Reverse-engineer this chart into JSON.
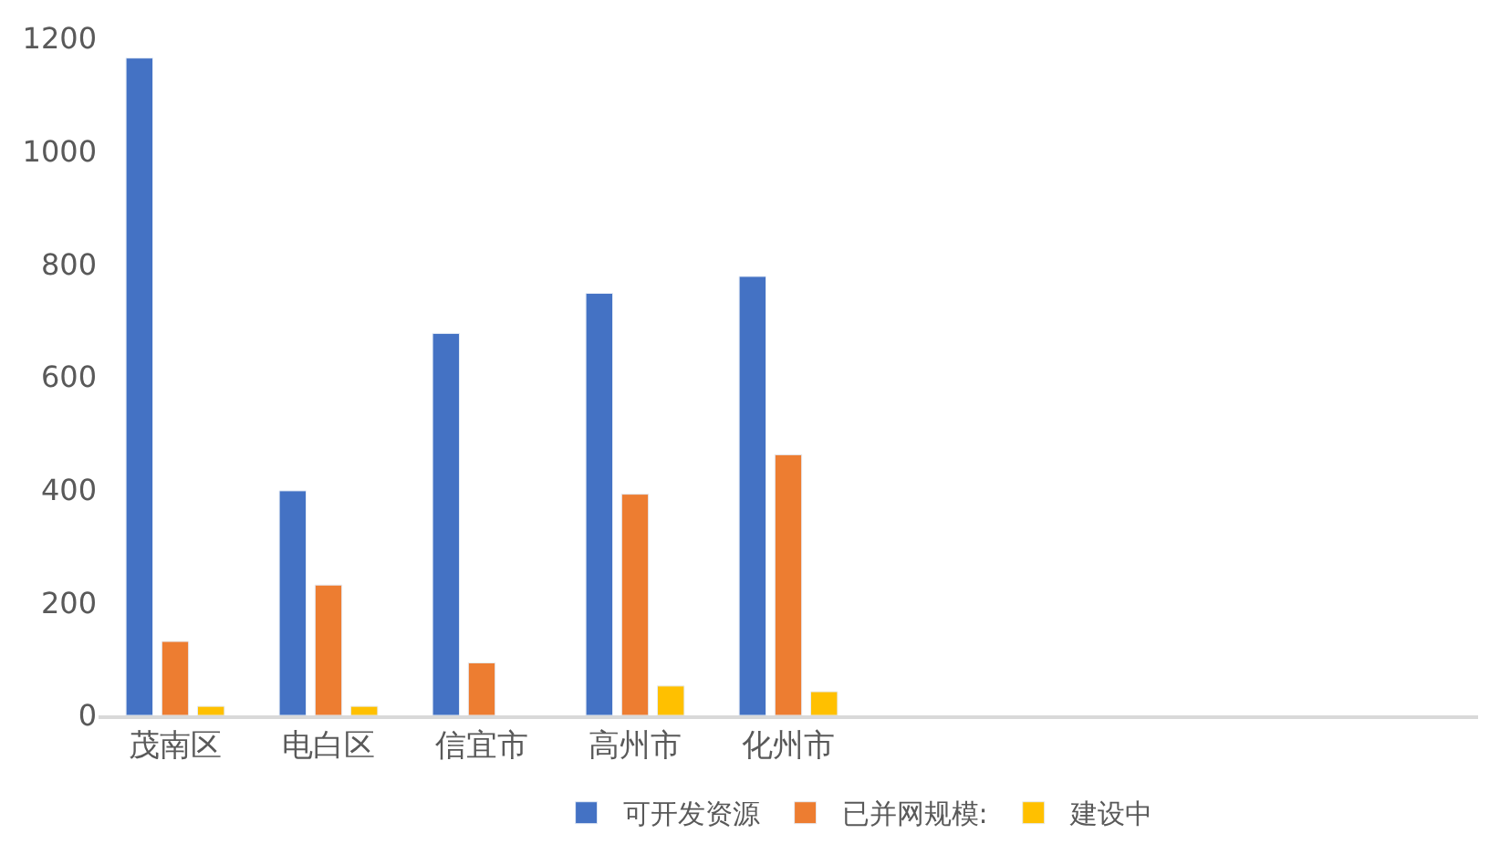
{
  "chart_data": {
    "type": "bar",
    "categories": [
      "茂南区",
      "电白区",
      "信宜市",
      "高州市",
      "化州市",
      null,
      null,
      null,
      null
    ],
    "series": [
      {
        "name": "可开发资源",
        "color": "#4472c4",
        "values": [
          1165,
          398,
          677,
          748,
          778,
          null,
          null,
          null,
          null
        ]
      },
      {
        "name": "已并网规模:",
        "color": "#ed7d31",
        "values": [
          131,
          231,
          93,
          392,
          462,
          null,
          null,
          null,
          null
        ]
      },
      {
        "name": "建设中",
        "color": "#ffc000",
        "values": [
          16,
          16,
          null,
          52,
          42,
          null,
          null,
          null,
          null
        ]
      }
    ],
    "ylim": [
      0,
      1200
    ],
    "yticks": [
      0,
      200,
      400,
      600,
      800,
      1000,
      1200
    ],
    "legend": "bottom"
  }
}
